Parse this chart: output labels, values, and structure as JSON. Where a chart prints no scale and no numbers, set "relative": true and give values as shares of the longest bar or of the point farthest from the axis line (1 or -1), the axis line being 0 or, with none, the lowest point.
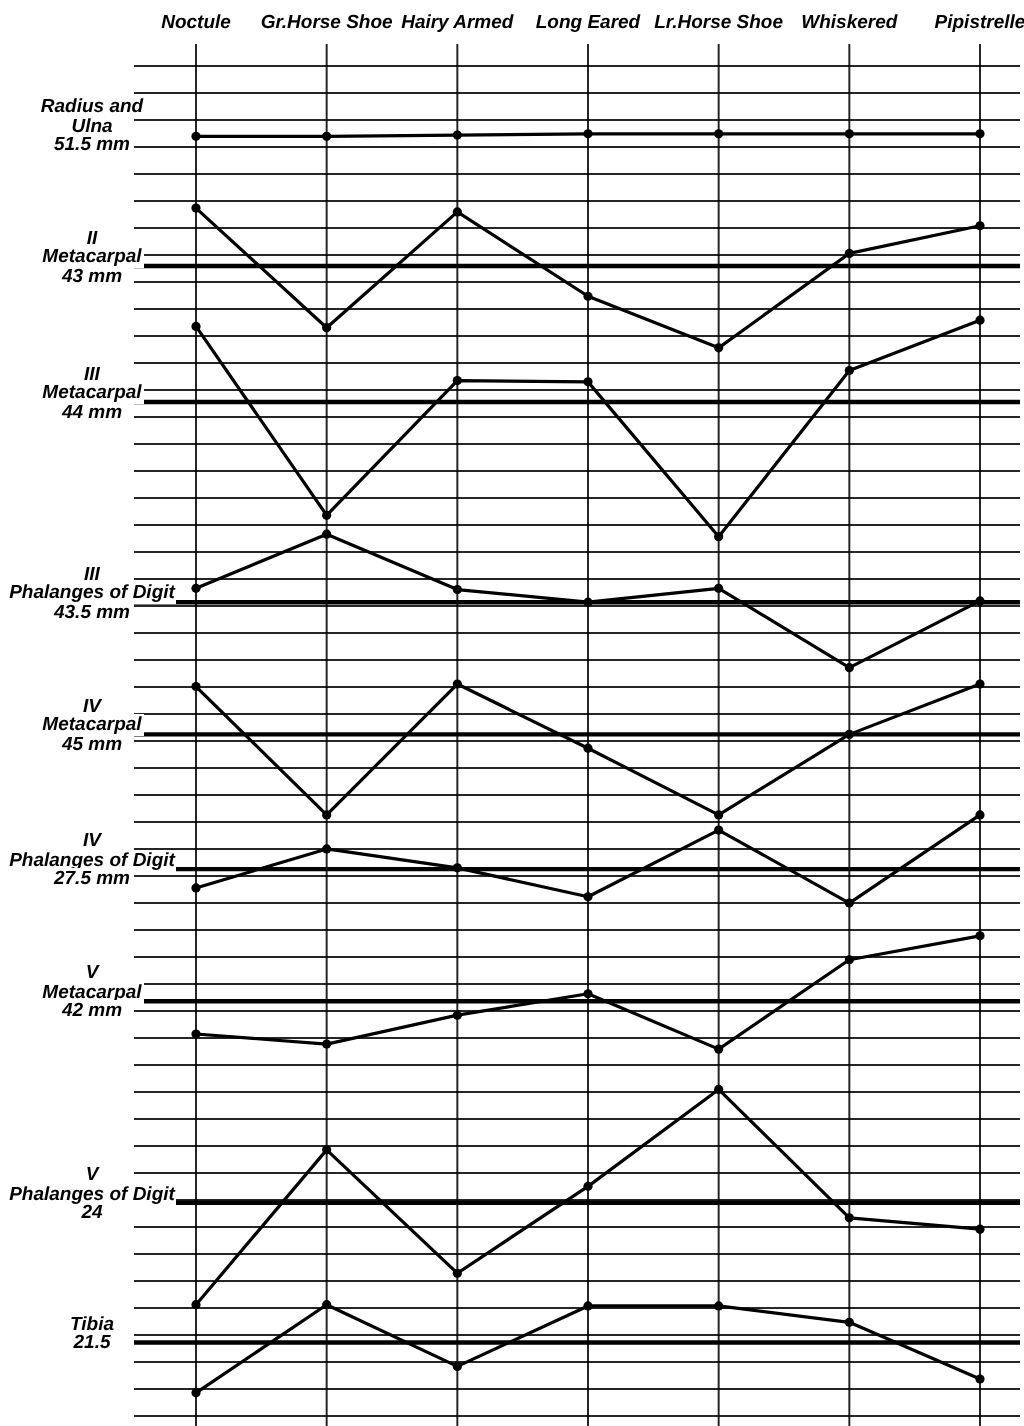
{
  "chart_data": {
    "type": "line",
    "relative": true,
    "grid": true,
    "marker": "circle",
    "line_style": "solid",
    "categories": [
      "Noctule",
      "Gr.Horse Shoe",
      "Hairy Armed",
      "Long Eared",
      "Lr.Horse Shoe",
      "Whiskered",
      "Pipistrelle"
    ],
    "series": [
      {
        "name": "Radius and\nUlna\n51.5 mm",
        "color": "#000000",
        "values": [
          0.998,
          0.998,
          0.999,
          1,
          1,
          1,
          1
        ]
      },
      {
        "color": "#000000",
        "values": [
          0.941,
          0.846,
          0.938,
          0.871,
          0.83,
          0.905,
          0.927
        ]
      },
      {
        "color": "#000000",
        "values": [
          0.847,
          0.697,
          0.804,
          0.803,
          0.68,
          0.812,
          0.852
        ]
      },
      {
        "color": "#000000",
        "values": [
          0.639,
          0.682,
          0.638,
          0.628,
          0.639,
          0.576,
          0.629
        ]
      },
      {
        "color": "#000000",
        "values": [
          0.561,
          0.459,
          0.563,
          0.512,
          0.459,
          0.523,
          0.563
        ]
      },
      {
        "color": "#000000",
        "values": [
          0.401,
          0.432,
          0.417,
          0.394,
          0.447,
          0.389,
          0.459
        ]
      },
      {
        "color": "#000000",
        "values": [
          0.285,
          0.277,
          0.3,
          0.317,
          0.273,
          0.344,
          0.363
        ]
      },
      {
        "color": "#000000",
        "values": [
          0.07,
          0.193,
          0.095,
          0.164,
          0.241,
          0.139,
          0.13
        ]
      },
      {
        "color": "#000000",
        "values": [
          0,
          0.07,
          0.021,
          0.069,
          0.069,
          0.056,
          0.011
        ]
      }
    ],
    "ref_lines": [
      {
        "axis": "y",
        "value": 0.895,
        "label": "II\nMetacarpal\n43 mm",
        "color": "#000000"
      },
      {
        "axis": "y",
        "value": 0.787,
        "label": "III\nMetacarpal\n44 mm",
        "color": "#000000"
      },
      {
        "axis": "y",
        "value": 0.628,
        "label": "III\nPhalanges of Digit\n43.5 mm",
        "color": "#000000"
      },
      {
        "axis": "y",
        "value": 0.523,
        "label": "IV\nMetacarpal\n45 mm",
        "color": "#000000"
      },
      {
        "axis": "y",
        "value": 0.416,
        "label": "IV\nPhalanges of Digit\n27.5 mm",
        "color": "#000000"
      },
      {
        "axis": "y",
        "value": 0.311,
        "label": "V\nMetacarpal\n42 mm",
        "color": "#000000"
      },
      {
        "axis": "y",
        "value": 0.151,
        "label": "V\nPhalanges of Digit\n24",
        "color": "#000000"
      },
      {
        "axis": "y",
        "value": 0.04,
        "label": "Tibia\n21.5",
        "color": "#000000"
      }
    ]
  }
}
